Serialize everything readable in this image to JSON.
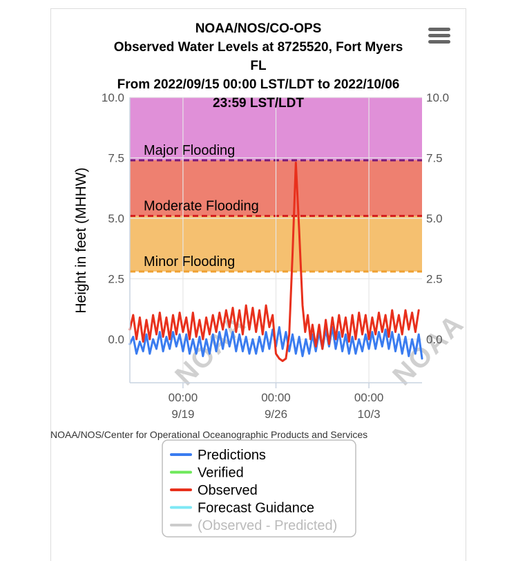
{
  "chart_data": {
    "type": "line",
    "title_lines": [
      "NOAA/NOS/CO-OPS",
      "Observed Water Levels at 8725520, Fort Myers",
      "FL",
      "From 2022/09/15 00:00 LST/LDT to 2022/10/06",
      "23:59 LST/LDT"
    ],
    "ylabel": "Height in feet (MHHW)",
    "ylim": [
      -1.8,
      10.0
    ],
    "y_ticks": [
      "10.0",
      "7.5",
      "5.0",
      "2.5",
      "0.0"
    ],
    "x_ticks": [
      {
        "time": "00:00",
        "date": "9/19"
      },
      {
        "time": "00:00",
        "date": "9/26"
      },
      {
        "time": "00:00",
        "date": "10/3"
      }
    ],
    "x_range_days": [
      "2022-09-15",
      "2022-10-07"
    ],
    "x_tick_day_offsets": [
      4,
      11,
      18
    ],
    "flood_bands": [
      {
        "name": "Major Flooding",
        "from": 7.4,
        "to": 10.0,
        "color": "#e090d8",
        "line_color": "#7a1a7a"
      },
      {
        "name": "Moderate Flooding",
        "from": 5.1,
        "to": 7.4,
        "color": "#ee8070",
        "line_color": "#d42020"
      },
      {
        "name": "Minor Flooding",
        "from": 2.8,
        "to": 5.1,
        "color": "#f5c070",
        "line_color": "#f0a030"
      }
    ],
    "series": [
      {
        "name": "Predictions",
        "color": "#3a7cf0",
        "x_days": [
          0.0,
          0.25,
          0.5,
          0.75,
          1.0,
          1.25,
          1.5,
          1.75,
          2.0,
          2.25,
          2.5,
          2.75,
          3.0,
          3.25,
          3.5,
          3.75,
          4.0,
          4.25,
          4.5,
          4.75,
          5.0,
          5.25,
          5.5,
          5.75,
          6.0,
          6.25,
          6.5,
          6.75,
          7.0,
          7.25,
          7.5,
          7.75,
          8.0,
          8.25,
          8.5,
          8.75,
          9.0,
          9.25,
          9.5,
          9.75,
          10.0,
          10.25,
          10.5,
          10.75,
          11.0,
          11.25,
          11.5,
          11.75,
          12.0,
          12.25,
          12.5,
          12.75,
          13.0,
          13.25,
          13.5,
          13.75,
          14.0,
          14.25,
          14.5,
          14.75,
          15.0,
          15.25,
          15.5,
          15.75,
          16.0,
          16.25,
          16.5,
          16.75,
          17.0,
          17.25,
          17.5,
          17.75,
          18.0,
          18.25,
          18.5,
          18.75,
          19.0,
          19.25,
          19.5,
          19.75,
          20.0,
          20.25,
          20.5,
          20.75,
          21.0,
          21.25,
          21.5,
          21.75,
          22.0
        ],
        "values": [
          -0.2,
          0.1,
          -0.6,
          -0.1,
          -0.5,
          0.2,
          -0.6,
          0.0,
          -0.4,
          0.3,
          -0.5,
          0.1,
          -0.4,
          0.3,
          -0.3,
          0.2,
          -0.5,
          0.2,
          -0.6,
          0.0,
          -0.6,
          0.1,
          -0.7,
          0.0,
          -0.6,
          0.2,
          -0.5,
          0.3,
          -0.4,
          0.4,
          -0.3,
          0.3,
          -0.5,
          0.2,
          -0.5,
          0.1,
          -0.6,
          0.0,
          -0.6,
          0.1,
          -0.5,
          0.3,
          -0.4,
          0.4,
          -0.3,
          0.5,
          -0.4,
          0.3,
          -0.5,
          0.2,
          -0.6,
          0.1,
          -0.7,
          0.0,
          -0.6,
          0.2,
          -0.5,
          0.3,
          -0.4,
          0.4,
          -0.3,
          0.5,
          -0.4,
          0.3,
          -0.5,
          0.2,
          -0.6,
          0.1,
          -0.6,
          0.0,
          -0.5,
          0.2,
          -0.4,
          0.3,
          -0.4,
          0.3,
          -0.3,
          0.4,
          -0.4,
          0.3,
          -0.5,
          0.2,
          -0.6,
          0.1,
          -0.7,
          0.0,
          -0.6,
          0.2,
          -0.8
        ]
      },
      {
        "name": "Observed",
        "color": "#e8301c",
        "x_days": [
          0.0,
          0.25,
          0.5,
          0.75,
          1.0,
          1.25,
          1.5,
          1.75,
          2.0,
          2.25,
          2.5,
          2.75,
          3.0,
          3.25,
          3.5,
          3.75,
          4.0,
          4.25,
          4.5,
          4.75,
          5.0,
          5.25,
          5.5,
          5.75,
          6.0,
          6.25,
          6.5,
          6.75,
          7.0,
          7.25,
          7.5,
          7.75,
          8.0,
          8.25,
          8.5,
          8.75,
          9.0,
          9.25,
          9.5,
          9.75,
          10.0,
          10.25,
          10.5,
          10.75,
          11.0,
          11.25,
          11.5,
          11.75,
          12.0,
          12.25,
          12.5,
          12.75,
          13.0,
          13.2,
          13.4,
          13.6,
          13.75,
          14.0,
          14.25,
          14.5,
          14.75,
          15.0,
          15.25,
          15.5,
          15.75,
          16.0,
          16.25,
          16.5,
          16.75,
          17.0,
          17.25,
          17.5,
          17.75,
          18.0,
          18.25,
          18.5,
          18.75,
          19.0,
          19.25,
          19.5,
          19.75,
          20.0,
          20.25,
          20.5,
          20.75,
          21.0,
          21.25,
          21.5,
          21.75
        ],
        "values": [
          0.4,
          1.0,
          0.0,
          0.9,
          -0.1,
          0.8,
          0.0,
          1.0,
          0.2,
          1.1,
          0.1,
          0.9,
          0.0,
          1.0,
          0.2,
          1.1,
          0.3,
          0.9,
          0.0,
          1.1,
          0.1,
          0.8,
          0.0,
          0.9,
          0.2,
          1.0,
          0.3,
          1.1,
          0.4,
          1.2,
          0.5,
          1.3,
          0.3,
          1.2,
          0.2,
          1.4,
          0.4,
          1.3,
          0.3,
          1.2,
          0.2,
          1.4,
          0.5,
          1.0,
          -0.6,
          -0.8,
          -0.9,
          -0.8,
          0.2,
          3.5,
          7.3,
          4.5,
          1.4,
          0.3,
          1.0,
          0.0,
          0.6,
          -0.3,
          0.6,
          -0.4,
          0.8,
          -0.2,
          0.9,
          0.0,
          1.0,
          0.1,
          0.9,
          -0.1,
          1.0,
          0.0,
          1.1,
          0.2,
          1.0,
          0.0,
          0.9,
          0.2,
          1.1,
          0.3,
          1.0,
          0.1,
          1.2,
          0.3,
          1.0,
          0.2,
          1.2,
          0.4,
          1.1,
          0.3,
          1.2
        ]
      }
    ],
    "legend": [
      {
        "label": "Predictions",
        "color": "#3a7cf0",
        "muted": false
      },
      {
        "label": "Verified",
        "color": "#6ee85a",
        "muted": false
      },
      {
        "label": "Observed",
        "color": "#e8301c",
        "muted": false
      },
      {
        "label": "Forecast Guidance",
        "color": "#7ee8f5",
        "muted": false
      },
      {
        "label": "(Observed - Predicted)",
        "color": "#cccccc",
        "muted": true
      }
    ],
    "credit": "NOAA/NOS/Center for Operational Oceanographic Products and Services",
    "watermark": "NOAA",
    "grid": true
  },
  "toolbar": {
    "menu_icon": "hamburger-icon"
  }
}
